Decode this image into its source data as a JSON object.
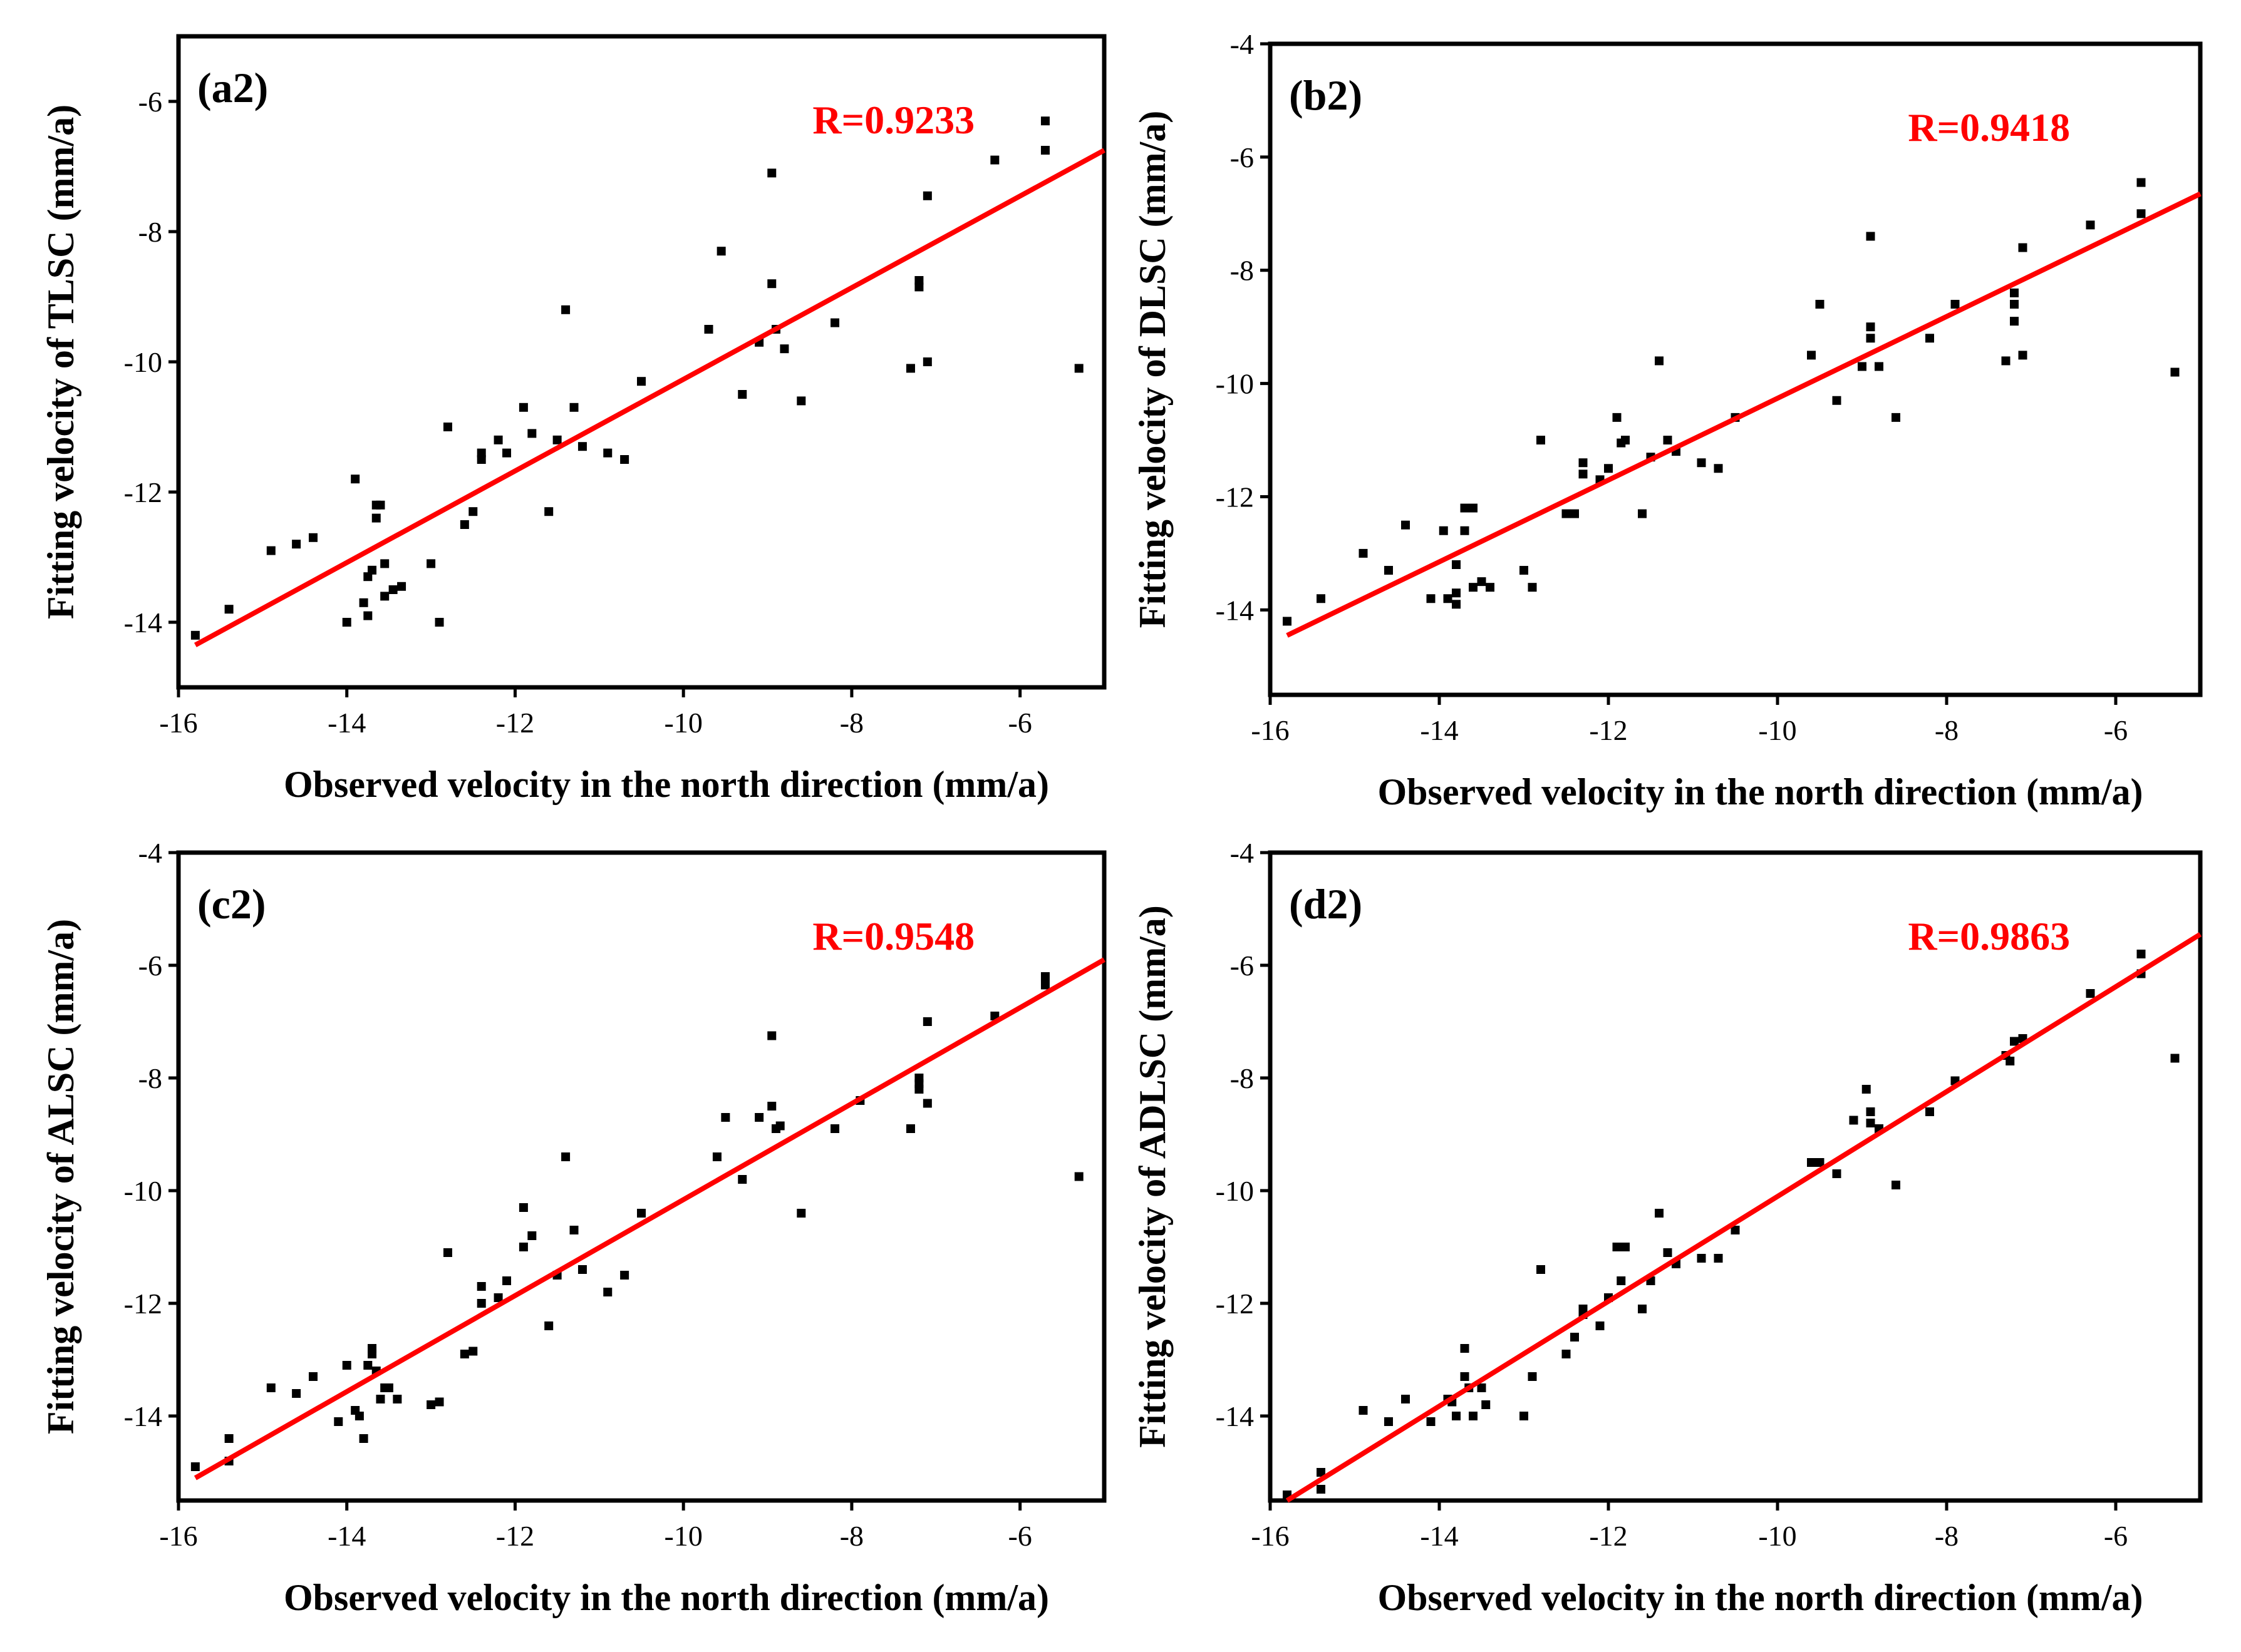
{
  "colors": {
    "fit_line": "#ff0000",
    "points": "#000000",
    "frame": "#000000",
    "r_label": "#ff0000"
  },
  "chart_data": [
    {
      "type": "scatter",
      "panel_label": "(a2)",
      "r_label": "R=0.9233",
      "xlabel": "Observed velocity in the north direction (mm/a)",
      "ylabel": "Fitting velocity of TLSC (mm/a)",
      "xlim": [
        -16,
        -5
      ],
      "ylim": [
        -15,
        -5
      ],
      "xticks": [
        -16,
        -14,
        -12,
        -10,
        -8,
        -6
      ],
      "yticks": [
        -14,
        -12,
        -10,
        -8,
        -6
      ],
      "fit_line": {
        "x": [
          -15.8,
          -5
        ],
        "y": [
          -14.35,
          -6.75
        ]
      },
      "points": [
        [
          -15.8,
          -14.2
        ],
        [
          -15.4,
          -13.8
        ],
        [
          -14.9,
          -12.9
        ],
        [
          -14.6,
          -12.8
        ],
        [
          -14.4,
          -12.7
        ],
        [
          -14.0,
          -14.0
        ],
        [
          -13.9,
          -11.8
        ],
        [
          -13.8,
          -13.7
        ],
        [
          -13.75,
          -13.9
        ],
        [
          -13.75,
          -13.3
        ],
        [
          -13.7,
          -13.2
        ],
        [
          -13.65,
          -12.4
        ],
        [
          -13.65,
          -12.2
        ],
        [
          -13.6,
          -12.2
        ],
        [
          -13.55,
          -13.1
        ],
        [
          -13.55,
          -13.6
        ],
        [
          -13.45,
          -13.5
        ],
        [
          -13.35,
          -13.45
        ],
        [
          -13.0,
          -13.1
        ],
        [
          -12.9,
          -14.0
        ],
        [
          -12.8,
          -11.0
        ],
        [
          -12.6,
          -12.5
        ],
        [
          -12.5,
          -12.3
        ],
        [
          -12.4,
          -11.5
        ],
        [
          -12.4,
          -11.4
        ],
        [
          -12.2,
          -11.2
        ],
        [
          -12.1,
          -11.4
        ],
        [
          -11.9,
          -10.7
        ],
        [
          -11.8,
          -11.1
        ],
        [
          -11.6,
          -12.3
        ],
        [
          -11.5,
          -11.2
        ],
        [
          -11.4,
          -9.2
        ],
        [
          -11.3,
          -10.7
        ],
        [
          -11.2,
          -11.3
        ],
        [
          -10.9,
          -11.4
        ],
        [
          -10.7,
          -11.5
        ],
        [
          -10.5,
          -10.3
        ],
        [
          -9.7,
          -9.5
        ],
        [
          -9.55,
          -8.3
        ],
        [
          -9.3,
          -10.5
        ],
        [
          -9.1,
          -9.7
        ],
        [
          -8.95,
          -7.1
        ],
        [
          -8.95,
          -8.8
        ],
        [
          -8.9,
          -9.5
        ],
        [
          -8.8,
          -9.8
        ],
        [
          -8.6,
          -10.6
        ],
        [
          -8.2,
          -9.4
        ],
        [
          -7.3,
          -10.1
        ],
        [
          -7.2,
          -8.85
        ],
        [
          -7.2,
          -8.75
        ],
        [
          -7.1,
          -10.0
        ],
        [
          -7.1,
          -7.45
        ],
        [
          -6.3,
          -6.9
        ],
        [
          -5.7,
          -6.3
        ],
        [
          -5.7,
          -6.75
        ],
        [
          -5.3,
          -10.1
        ]
      ]
    },
    {
      "type": "scatter",
      "panel_label": "(b2)",
      "r_label": "R=0.9418",
      "xlabel": "Observed velocity in the north direction (mm/a)",
      "ylabel": "Fitting velocity of DLSC (mm/a)",
      "xlim": [
        -16,
        -5
      ],
      "ylim": [
        -15.5,
        -4
      ],
      "xticks": [
        -16,
        -14,
        -12,
        -10,
        -8,
        -6
      ],
      "yticks": [
        -14,
        -12,
        -10,
        -8,
        -6,
        -4
      ],
      "fit_line": {
        "x": [
          -15.8,
          -5
        ],
        "y": [
          -14.45,
          -6.65
        ]
      },
      "points": [
        [
          -15.8,
          -14.2
        ],
        [
          -15.4,
          -13.8
        ],
        [
          -14.9,
          -13.0
        ],
        [
          -14.6,
          -13.3
        ],
        [
          -14.4,
          -12.5
        ],
        [
          -14.1,
          -13.8
        ],
        [
          -13.95,
          -12.6
        ],
        [
          -13.9,
          -13.8
        ],
        [
          -13.8,
          -13.9
        ],
        [
          -13.8,
          -13.7
        ],
        [
          -13.8,
          -13.2
        ],
        [
          -13.7,
          -12.6
        ],
        [
          -13.7,
          -12.2
        ],
        [
          -13.6,
          -12.2
        ],
        [
          -13.6,
          -13.6
        ],
        [
          -13.5,
          -13.5
        ],
        [
          -13.4,
          -13.6
        ],
        [
          -13.0,
          -13.3
        ],
        [
          -12.9,
          -13.6
        ],
        [
          -12.8,
          -11.0
        ],
        [
          -12.5,
          -12.3
        ],
        [
          -12.4,
          -12.3
        ],
        [
          -12.3,
          -11.4
        ],
        [
          -12.3,
          -11.6
        ],
        [
          -12.1,
          -11.7
        ],
        [
          -12.0,
          -11.5
        ],
        [
          -11.9,
          -10.6
        ],
        [
          -11.85,
          -11.05
        ],
        [
          -11.8,
          -11.0
        ],
        [
          -11.6,
          -12.3
        ],
        [
          -11.5,
          -11.3
        ],
        [
          -11.4,
          -9.6
        ],
        [
          -11.3,
          -11.0
        ],
        [
          -11.2,
          -11.2
        ],
        [
          -10.9,
          -11.4
        ],
        [
          -10.7,
          -11.5
        ],
        [
          -10.5,
          -10.6
        ],
        [
          -9.6,
          -9.5
        ],
        [
          -9.5,
          -8.6
        ],
        [
          -9.3,
          -10.3
        ],
        [
          -9.0,
          -9.7
        ],
        [
          -8.9,
          -9.0
        ],
        [
          -8.9,
          -9.2
        ],
        [
          -8.9,
          -7.4
        ],
        [
          -8.8,
          -9.7
        ],
        [
          -8.6,
          -10.6
        ],
        [
          -8.2,
          -9.2
        ],
        [
          -7.9,
          -8.6
        ],
        [
          -7.3,
          -9.6
        ],
        [
          -7.2,
          -8.4
        ],
        [
          -7.2,
          -8.6
        ],
        [
          -7.2,
          -8.9
        ],
        [
          -7.1,
          -7.6
        ],
        [
          -7.1,
          -9.5
        ],
        [
          -6.3,
          -7.2
        ],
        [
          -5.7,
          -6.45
        ],
        [
          -5.7,
          -7.0
        ],
        [
          -5.3,
          -9.8
        ]
      ]
    },
    {
      "type": "scatter",
      "panel_label": "(c2)",
      "r_label": "R=0.9548",
      "xlabel": "Observed velocity in the north direction (mm/a)",
      "ylabel": "Fitting velocity of ALSC (mm/a)",
      "xlim": [
        -16,
        -5
      ],
      "ylim": [
        -15.5,
        -4
      ],
      "xticks": [
        -16,
        -14,
        -12,
        -10,
        -8,
        -6
      ],
      "yticks": [
        -14,
        -12,
        -10,
        -8,
        -6,
        -4
      ],
      "fit_line": {
        "x": [
          -15.8,
          -5
        ],
        "y": [
          -15.1,
          -5.9
        ]
      },
      "points": [
        [
          -15.8,
          -14.9
        ],
        [
          -15.4,
          -14.4
        ],
        [
          -15.4,
          -14.8
        ],
        [
          -14.9,
          -13.5
        ],
        [
          -14.6,
          -13.6
        ],
        [
          -14.4,
          -13.3
        ],
        [
          -14.1,
          -14.1
        ],
        [
          -14.0,
          -13.1
        ],
        [
          -13.9,
          -13.9
        ],
        [
          -13.85,
          -14.0
        ],
        [
          -13.8,
          -14.4
        ],
        [
          -13.75,
          -13.1
        ],
        [
          -13.7,
          -12.8
        ],
        [
          -13.7,
          -12.9
        ],
        [
          -13.65,
          -13.2
        ],
        [
          -13.6,
          -13.7
        ],
        [
          -13.55,
          -13.5
        ],
        [
          -13.5,
          -13.5
        ],
        [
          -13.4,
          -13.7
        ],
        [
          -13.0,
          -13.8
        ],
        [
          -12.9,
          -13.75
        ],
        [
          -12.8,
          -11.1
        ],
        [
          -12.6,
          -12.9
        ],
        [
          -12.5,
          -12.85
        ],
        [
          -12.4,
          -11.7
        ],
        [
          -12.4,
          -12.0
        ],
        [
          -12.2,
          -11.9
        ],
        [
          -12.1,
          -11.6
        ],
        [
          -11.9,
          -10.3
        ],
        [
          -11.9,
          -11.0
        ],
        [
          -11.8,
          -10.8
        ],
        [
          -11.6,
          -12.4
        ],
        [
          -11.5,
          -11.5
        ],
        [
          -11.4,
          -9.4
        ],
        [
          -11.3,
          -10.7
        ],
        [
          -11.2,
          -11.4
        ],
        [
          -10.9,
          -11.8
        ],
        [
          -10.7,
          -11.5
        ],
        [
          -10.5,
          -10.4
        ],
        [
          -9.6,
          -9.4
        ],
        [
          -9.5,
          -8.7
        ],
        [
          -9.3,
          -9.8
        ],
        [
          -9.1,
          -8.7
        ],
        [
          -8.95,
          -7.25
        ],
        [
          -8.95,
          -8.5
        ],
        [
          -8.9,
          -8.9
        ],
        [
          -8.85,
          -8.85
        ],
        [
          -8.6,
          -10.4
        ],
        [
          -8.2,
          -8.9
        ],
        [
          -7.9,
          -8.4
        ],
        [
          -7.3,
          -8.9
        ],
        [
          -7.2,
          -8.0
        ],
        [
          -7.2,
          -8.1
        ],
        [
          -7.2,
          -8.2
        ],
        [
          -7.1,
          -7.0
        ],
        [
          -7.1,
          -8.45
        ],
        [
          -6.3,
          -6.9
        ],
        [
          -5.7,
          -6.2
        ],
        [
          -5.7,
          -6.35
        ],
        [
          -5.3,
          -9.75
        ]
      ]
    },
    {
      "type": "scatter",
      "panel_label": "(d2)",
      "r_label": "R=0.9863",
      "xlabel": "Observed velocity in the north direction (mm/a)",
      "ylabel": "Fitting velocity of ADLSC (mm/a)",
      "xlim": [
        -16,
        -5
      ],
      "ylim": [
        -15.5,
        -4
      ],
      "xticks": [
        -16,
        -14,
        -12,
        -10,
        -8,
        -6
      ],
      "yticks": [
        -14,
        -12,
        -10,
        -8,
        -6,
        -4
      ],
      "fit_line": {
        "x": [
          -15.8,
          -5
        ],
        "y": [
          -15.5,
          -5.45
        ]
      },
      "points": [
        [
          -15.8,
          -15.4
        ],
        [
          -15.4,
          -15.3
        ],
        [
          -15.4,
          -15.0
        ],
        [
          -14.9,
          -13.9
        ],
        [
          -14.6,
          -14.1
        ],
        [
          -14.4,
          -13.7
        ],
        [
          -14.1,
          -14.1
        ],
        [
          -13.9,
          -13.7
        ],
        [
          -13.85,
          -13.75
        ],
        [
          -13.8,
          -14.0
        ],
        [
          -13.7,
          -12.8
        ],
        [
          -13.7,
          -13.3
        ],
        [
          -13.65,
          -13.5
        ],
        [
          -13.6,
          -14.0
        ],
        [
          -13.5,
          -13.5
        ],
        [
          -13.45,
          -13.8
        ],
        [
          -13.0,
          -14.0
        ],
        [
          -12.9,
          -13.3
        ],
        [
          -12.8,
          -11.4
        ],
        [
          -12.5,
          -12.9
        ],
        [
          -12.4,
          -12.6
        ],
        [
          -12.3,
          -12.1
        ],
        [
          -12.3,
          -12.2
        ],
        [
          -12.1,
          -12.4
        ],
        [
          -12.0,
          -11.9
        ],
        [
          -11.9,
          -11.0
        ],
        [
          -11.85,
          -11.6
        ],
        [
          -11.8,
          -11.0
        ],
        [
          -11.6,
          -12.1
        ],
        [
          -11.5,
          -11.6
        ],
        [
          -11.4,
          -10.4
        ],
        [
          -11.3,
          -11.1
        ],
        [
          -11.2,
          -11.3
        ],
        [
          -10.9,
          -11.2
        ],
        [
          -10.7,
          -11.2
        ],
        [
          -10.5,
          -10.7
        ],
        [
          -9.6,
          -9.5
        ],
        [
          -9.5,
          -9.5
        ],
        [
          -9.3,
          -9.7
        ],
        [
          -9.1,
          -8.75
        ],
        [
          -8.95,
          -8.2
        ],
        [
          -8.9,
          -8.6
        ],
        [
          -8.9,
          -8.8
        ],
        [
          -8.8,
          -8.9
        ],
        [
          -8.6,
          -9.9
        ],
        [
          -8.2,
          -8.6
        ],
        [
          -7.9,
          -8.05
        ],
        [
          -7.3,
          -7.6
        ],
        [
          -7.25,
          -7.7
        ],
        [
          -7.2,
          -7.35
        ],
        [
          -7.1,
          -7.3
        ],
        [
          -6.3,
          -6.5
        ],
        [
          -5.7,
          -5.8
        ],
        [
          -5.7,
          -6.15
        ],
        [
          -5.3,
          -7.65
        ]
      ]
    }
  ]
}
